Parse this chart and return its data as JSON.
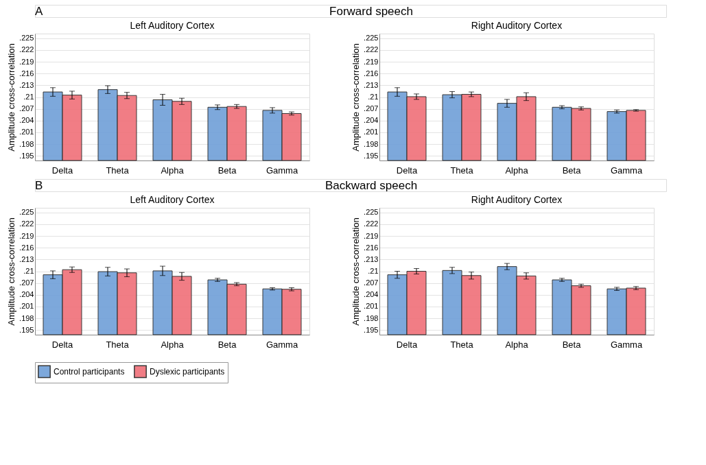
{
  "chart_data": [
    {
      "type": "bar",
      "title": "Left Auditory Cortex",
      "ylabel": "Amplitude cross-correlation",
      "annotations": [
        "A",
        "Forward speech"
      ],
      "categories": [
        "Delta",
        "Theta",
        "Alpha",
        "Beta",
        "Gamma"
      ],
      "series": [
        {
          "name": "Control participants",
          "color": "#6f9fd8",
          "values": [
            0.2113,
            0.2119,
            0.2093,
            0.2074,
            0.2066
          ],
          "errors": [
            0.0011,
            0.001,
            0.0014,
            0.0006,
            0.0007
          ]
        },
        {
          "name": "Dyslexic participants",
          "color": "#f07078",
          "values": [
            0.2105,
            0.2104,
            0.2089,
            0.2076,
            0.2058
          ],
          "errors": [
            0.001,
            0.0008,
            0.0008,
            0.0005,
            0.0004
          ]
        }
      ],
      "ylim": [
        0.1938,
        0.2262
      ],
      "yticks": [
        {
          "value": 0.195,
          "label": ".195"
        },
        {
          "value": 0.198,
          "label": ".198"
        },
        {
          "value": 0.201,
          "label": ".201"
        },
        {
          "value": 0.204,
          "label": ".204"
        },
        {
          "value": 0.207,
          "label": ".207"
        },
        {
          "value": 0.21,
          "label": ".21"
        },
        {
          "value": 0.213,
          "label": ".213"
        },
        {
          "value": 0.216,
          "label": ".216"
        },
        {
          "value": 0.219,
          "label": ".219"
        },
        {
          "value": 0.222,
          "label": ".222"
        },
        {
          "value": 0.225,
          "label": ".225"
        }
      ],
      "grid": "y",
      "legend": "bottom"
    },
    {
      "type": "bar",
      "title": "Right Auditory Cortex",
      "ylabel": "Amplitude cross-correlation",
      "categories": [
        "Delta",
        "Theta",
        "Alpha",
        "Beta",
        "Gamma"
      ],
      "series": [
        {
          "name": "Control participants",
          "color": "#6f9fd8",
          "values": [
            0.2113,
            0.2106,
            0.2084,
            0.2074,
            0.2063
          ],
          "errors": [
            0.0011,
            0.0008,
            0.001,
            0.0004,
            0.0004
          ]
        },
        {
          "name": "Dyslexic participants",
          "color": "#f07078",
          "values": [
            0.2101,
            0.2107,
            0.2101,
            0.2071,
            0.2066
          ],
          "errors": [
            0.0007,
            0.0006,
            0.001,
            0.0004,
            0.0002
          ]
        }
      ],
      "ylim": [
        0.1938,
        0.2262
      ],
      "yticks": [
        {
          "value": 0.195,
          "label": ".195"
        },
        {
          "value": 0.198,
          "label": ".198"
        },
        {
          "value": 0.201,
          "label": ".201"
        },
        {
          "value": 0.204,
          "label": ".204"
        },
        {
          "value": 0.207,
          "label": ".207"
        },
        {
          "value": 0.21,
          "label": ".21"
        },
        {
          "value": 0.213,
          "label": ".213"
        },
        {
          "value": 0.216,
          "label": ".216"
        },
        {
          "value": 0.219,
          "label": ".219"
        },
        {
          "value": 0.222,
          "label": ".222"
        },
        {
          "value": 0.225,
          "label": ".225"
        }
      ],
      "grid": "y",
      "legend": "bottom"
    },
    {
      "type": "bar",
      "title": "Left Auditory Cortex",
      "ylabel": "Amplitude cross-correlation",
      "annotations": [
        "B",
        "Backward speech"
      ],
      "categories": [
        "Delta",
        "Theta",
        "Alpha",
        "Beta",
        "Gamma"
      ],
      "series": [
        {
          "name": "Control participants",
          "color": "#6f9fd8",
          "values": [
            0.2091,
            0.2099,
            0.2101,
            0.2078,
            0.2055
          ],
          "errors": [
            0.001,
            0.0011,
            0.0012,
            0.0004,
            0.0003
          ]
        },
        {
          "name": "Dyslexic participants",
          "color": "#f07078",
          "values": [
            0.2104,
            0.2096,
            0.2087,
            0.2067,
            0.2054
          ],
          "errors": [
            0.0007,
            0.001,
            0.001,
            0.0004,
            0.0004
          ]
        }
      ],
      "ylim": [
        0.1938,
        0.2262
      ],
      "yticks": [
        {
          "value": 0.195,
          "label": ".195"
        },
        {
          "value": 0.198,
          "label": ".198"
        },
        {
          "value": 0.201,
          "label": ".201"
        },
        {
          "value": 0.204,
          "label": ".204"
        },
        {
          "value": 0.207,
          "label": ".207"
        },
        {
          "value": 0.21,
          "label": ".21"
        },
        {
          "value": 0.213,
          "label": ".213"
        },
        {
          "value": 0.216,
          "label": ".216"
        },
        {
          "value": 0.219,
          "label": ".219"
        },
        {
          "value": 0.222,
          "label": ".222"
        },
        {
          "value": 0.225,
          "label": ".225"
        }
      ],
      "grid": "y",
      "legend": "bottom"
    },
    {
      "type": "bar",
      "title": "Right Auditory Cortex",
      "ylabel": "Amplitude cross-correlation",
      "categories": [
        "Delta",
        "Theta",
        "Alpha",
        "Beta",
        "Gamma"
      ],
      "series": [
        {
          "name": "Control participants",
          "color": "#6f9fd8",
          "values": [
            0.2091,
            0.2102,
            0.2112,
            0.2078,
            0.2055
          ],
          "errors": [
            0.0009,
            0.0008,
            0.0008,
            0.0004,
            0.0004
          ]
        },
        {
          "name": "Dyslexic participants",
          "color": "#f07078",
          "values": [
            0.21,
            0.2089,
            0.2088,
            0.2063,
            0.2057
          ],
          "errors": [
            0.0007,
            0.0009,
            0.0008,
            0.0004,
            0.0004
          ]
        }
      ],
      "ylim": [
        0.1938,
        0.2262
      ],
      "yticks": [
        {
          "value": 0.195,
          "label": ".195"
        },
        {
          "value": 0.198,
          "label": ".198"
        },
        {
          "value": 0.201,
          "label": ".201"
        },
        {
          "value": 0.204,
          "label": ".204"
        },
        {
          "value": 0.207,
          "label": ".207"
        },
        {
          "value": 0.21,
          "label": ".21"
        },
        {
          "value": 0.213,
          "label": ".213"
        },
        {
          "value": 0.216,
          "label": ".216"
        },
        {
          "value": 0.219,
          "label": ".219"
        },
        {
          "value": 0.222,
          "label": ".222"
        },
        {
          "value": 0.225,
          "label": ".225"
        }
      ],
      "grid": "y",
      "legend": "bottom"
    }
  ]
}
